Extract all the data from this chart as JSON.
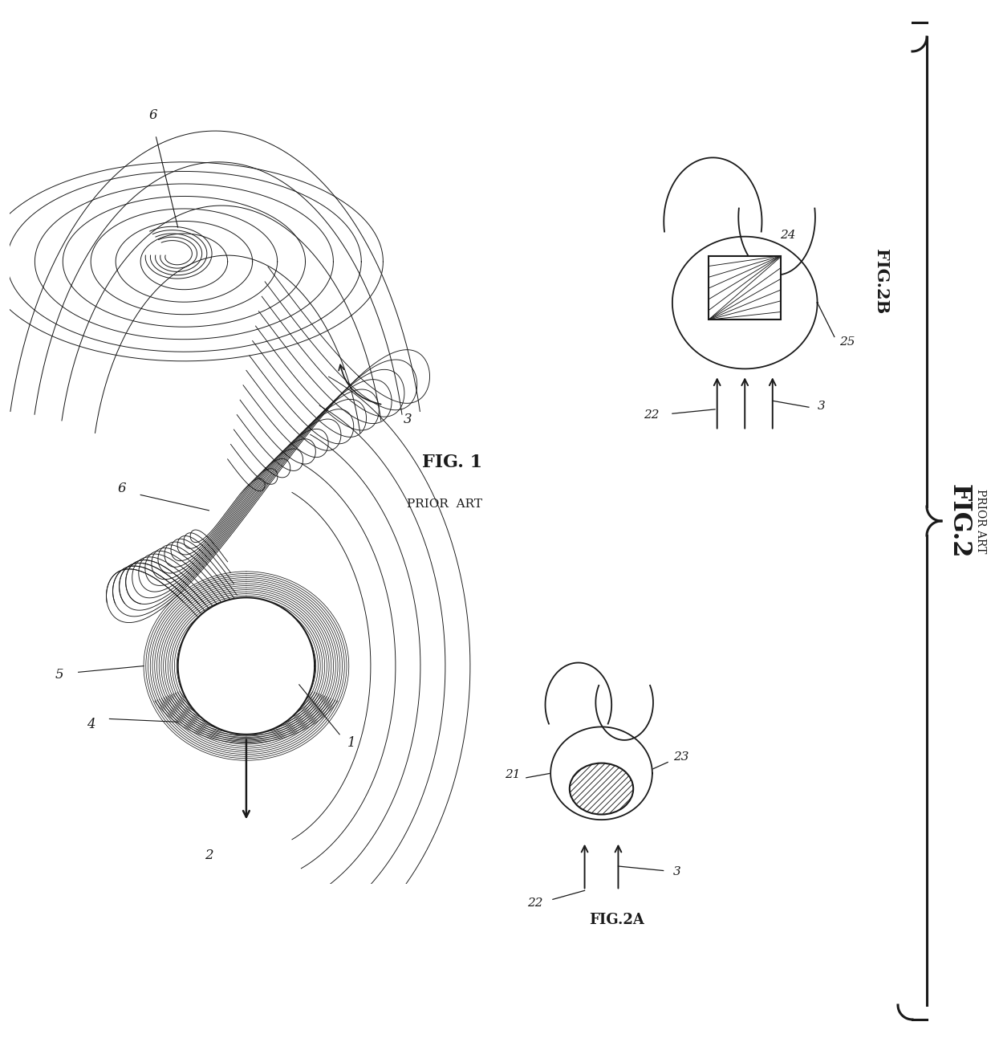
{
  "bg_color": "#ffffff",
  "line_color": "#1a1a1a",
  "fig_width": 12.4,
  "fig_height": 12.98,
  "labels": {
    "fig1": "FIG. 1",
    "fig1_sub": "PRIOR  ART",
    "fig2": "FIG.2",
    "fig2_sub": "PRIOR ART",
    "fig2a": "FIG.2A",
    "fig2b": "FIG.2B",
    "num1": "1",
    "num2": "2",
    "num3": "3",
    "num4": "4",
    "num5": "5",
    "num6": "6",
    "num21": "21",
    "num22": "22",
    "num23": "23",
    "num24": "24",
    "num25": "25"
  }
}
